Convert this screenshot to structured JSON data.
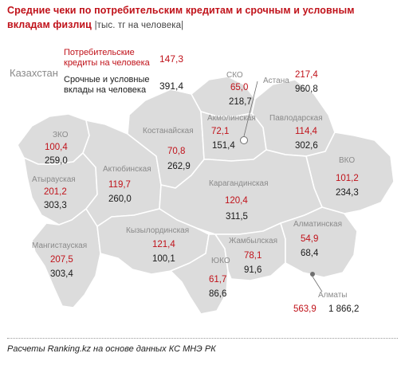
{
  "title": {
    "main": "Средние чеки по потребительским кредитам и срочным и условным вкладам физлиц",
    "unit": "|тыс. тг на человека|"
  },
  "country_label": "Казахстан",
  "legend": {
    "loans_label_1": "Потребительские",
    "loans_label_2": "кредиты на человека",
    "loans_value": "147,3",
    "deposits_label_1": "Срочные и условные",
    "deposits_label_2": "вклады на человека",
    "deposits_value": "391,4"
  },
  "colors": {
    "loans": "#c0121a",
    "deposits": "#1a1a1a",
    "map_fill": "#dcdcdc",
    "map_border": "#ffffff",
    "labels": "#8a8a8a"
  },
  "regions": {
    "sko": {
      "name": "СКО",
      "loans": "65,0",
      "deposits": "218,7"
    },
    "astana": {
      "name": "Астана",
      "loans": "217,4",
      "deposits": "960,8"
    },
    "akmola": {
      "name": "Акмолинская",
      "loans": "72,1",
      "deposits": "151,4"
    },
    "pavlodar": {
      "name": "Павлодарская",
      "loans": "114,4",
      "deposits": "302,6"
    },
    "kostanay": {
      "name": "Костанайская",
      "loans": "70,8",
      "deposits": "262,9"
    },
    "zko": {
      "name": "ЗКО",
      "loans": "100,4",
      "deposits": "259,0"
    },
    "atyrau": {
      "name": "Атырауская",
      "loans": "201,2",
      "deposits": "303,3"
    },
    "aktobe": {
      "name": "Актюбинская",
      "loans": "119,7",
      "deposits": "260,0"
    },
    "karaganda": {
      "name": "Карагандинская",
      "loans": "120,4",
      "deposits": "311,5"
    },
    "vko": {
      "name": "ВКО",
      "loans": "101,2",
      "deposits": "234,3"
    },
    "mangistau": {
      "name": "Мангистауская",
      "loans": "207,5",
      "deposits": "303,4"
    },
    "kyzylorda": {
      "name": "Кызылординская",
      "loans": "121,4",
      "deposits": "100,1"
    },
    "almaty_obl": {
      "name": "Алматинская",
      "loans": "54,9",
      "deposits": "68,4"
    },
    "zhambyl": {
      "name": "Жамбылская",
      "loans": "78,1",
      "deposits": "91,6"
    },
    "yuko": {
      "name": "ЮКО",
      "loans": "61,7",
      "deposits": "86,6"
    },
    "almaty": {
      "name": "Алматы",
      "loans": "563,9",
      "deposits": "1 866,2"
    }
  },
  "footer": "Расчеты Ranking.kz на основе данных КС МНЭ РК"
}
